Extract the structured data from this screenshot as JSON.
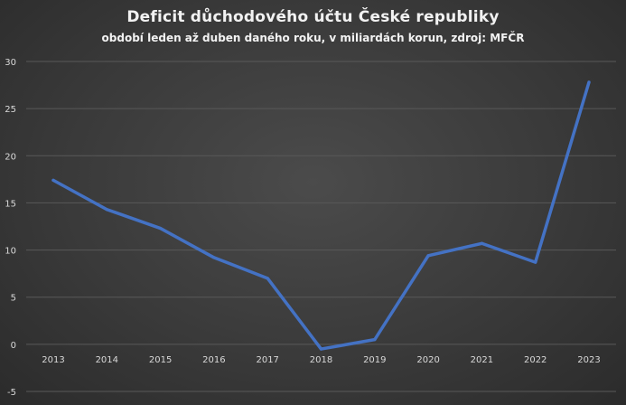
{
  "chart_data": {
    "type": "line",
    "title": "Deficit důchodového účtu České republiky",
    "subtitle": "období leden až duben daného roku, v miliardách korun, zdroj: MFČR",
    "xlabel": "",
    "ylabel": "",
    "categories": [
      "2013",
      "2014",
      "2015",
      "2016",
      "2017",
      "2018",
      "2019",
      "2020",
      "2021",
      "2022",
      "2023"
    ],
    "series": [
      {
        "values": [
          17.4,
          14.3,
          12.3,
          9.2,
          7.0,
          -0.5,
          0.5,
          9.4,
          10.7,
          8.7,
          27.8
        ]
      }
    ],
    "ylim": [
      -5,
      30
    ],
    "yticks": [
      -5,
      0,
      5,
      10,
      15,
      20,
      25,
      30
    ],
    "grid": true,
    "legend": "none",
    "line_color": "#4472c4",
    "grid_color": "#595959"
  }
}
